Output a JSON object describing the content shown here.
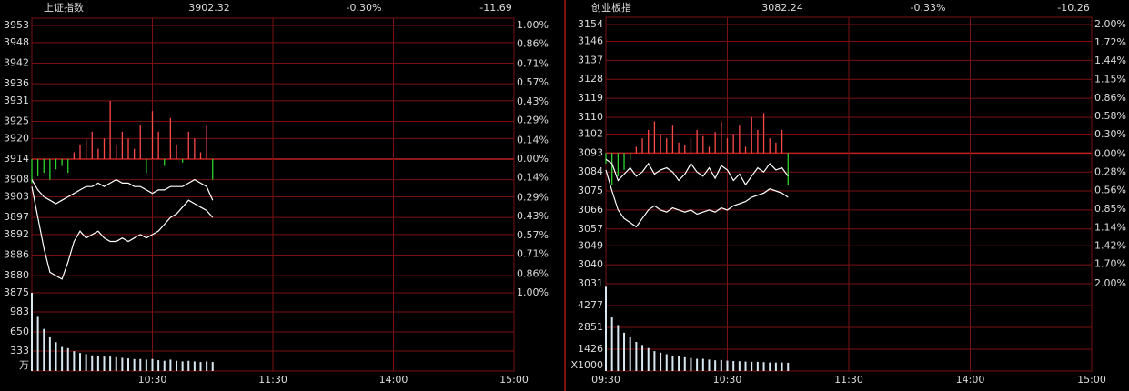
{
  "chart_data": [
    {
      "type": "line",
      "title": "上证指数",
      "price": 3902.32,
      "change_pct": {
        "value": -0.3,
        "label": "-0.30%"
      },
      "change": -11.69,
      "up_color": "#ff4a4a",
      "down_color": "#2fd52f",
      "flat_color": "#ffffff",
      "grid_color": "#7a1010",
      "x": [
        0,
        3,
        6,
        9,
        12,
        15,
        18,
        21,
        24,
        27,
        30,
        33,
        36,
        39,
        42,
        45,
        48,
        51,
        54,
        57,
        60,
        63,
        66,
        69,
        72,
        75,
        78,
        81,
        84,
        87,
        90
      ],
      "xlim": [
        0,
        240
      ],
      "xticks": [
        {
          "value": 60,
          "label": "10:30"
        },
        {
          "value": 120,
          "label": "11:30"
        },
        {
          "value": 180,
          "label": "14:00"
        },
        {
          "value": 240,
          "label": "15:00"
        }
      ],
      "ylim": [
        3875,
        3953
      ],
      "yticks": [
        3953,
        3948,
        3942,
        3936,
        3931,
        3925,
        3920,
        3914,
        3908,
        3903,
        3897,
        3892,
        3886,
        3880,
        3875
      ],
      "y2lim": [
        -1.0,
        1.0
      ],
      "y2ticks": [
        {
          "value": 1.0,
          "label": "1.00%"
        },
        {
          "value": 0.86,
          "label": "0.86%"
        },
        {
          "value": 0.71,
          "label": "0.71%"
        },
        {
          "value": 0.57,
          "label": "0.57%"
        },
        {
          "value": 0.43,
          "label": "0.43%"
        },
        {
          "value": 0.29,
          "label": "0.29%"
        },
        {
          "value": 0.14,
          "label": "0.14%"
        },
        {
          "value": 0.0,
          "label": "0.00%"
        },
        {
          "value": -0.14,
          "label": "0.14%"
        },
        {
          "value": -0.29,
          "label": "0.29%"
        },
        {
          "value": -0.43,
          "label": "0.43%"
        },
        {
          "value": -0.57,
          "label": "0.57%"
        },
        {
          "value": -0.71,
          "label": "0.71%"
        },
        {
          "value": -0.86,
          "label": "0.86%"
        },
        {
          "value": -1.0,
          "label": "1.00%"
        }
      ],
      "series": [
        {
          "color": "#ffffff",
          "values": [
            3908,
            3905,
            3903,
            3902,
            3901,
            3902,
            3903,
            3904,
            3905,
            3906,
            3906,
            3907,
            3906,
            3907,
            3908,
            3907,
            3907,
            3906,
            3906,
            3905,
            3904,
            3905,
            3905,
            3906,
            3906,
            3906,
            3907,
            3908,
            3907,
            3906,
            3902
          ]
        },
        {
          "color": "#ffffff",
          "values": [
            3906,
            3897,
            3888,
            3881,
            3880,
            3879,
            3884,
            3890,
            3893,
            3891,
            3892,
            3893,
            3891,
            3890,
            3890,
            3891,
            3890,
            3891,
            3892,
            3891,
            3892,
            3893,
            3895,
            3897,
            3898,
            3900,
            3902,
            3901,
            3900,
            3899,
            3897
          ]
        }
      ],
      "breadth": [
        3907,
        3909,
        3910,
        3908,
        3911,
        3912,
        3910,
        3916,
        3918,
        3920,
        3922,
        3917,
        3920,
        3931,
        3918,
        3922,
        3920,
        3917,
        3924,
        3910,
        3928,
        3922,
        3912,
        3926,
        3918,
        3913,
        3922,
        3920,
        3916,
        3924,
        3908
      ],
      "volume": {
        "color": "#d8e8f0",
        "label_color": "#5fb4e0",
        "unit": "万",
        "ylim": [
          0,
          1300
        ],
        "yticks": [
          333,
          650,
          983
        ],
        "values": [
          1300,
          900,
          700,
          560,
          480,
          400,
          380,
          330,
          300,
          280,
          260,
          250,
          240,
          240,
          230,
          220,
          210,
          200,
          200,
          190,
          200,
          180,
          170,
          190,
          170,
          160,
          170,
          160,
          150,
          160,
          150
        ]
      }
    },
    {
      "type": "line",
      "title": "创业板指",
      "price": 3082.24,
      "change_pct": {
        "value": -0.33,
        "label": "-0.33%"
      },
      "change": -10.26,
      "up_color": "#ff4a4a",
      "down_color": "#2fd52f",
      "flat_color": "#ffffff",
      "grid_color": "#7a1010",
      "x": [
        0,
        3,
        6,
        9,
        12,
        15,
        18,
        21,
        24,
        27,
        30,
        33,
        36,
        39,
        42,
        45,
        48,
        51,
        54,
        57,
        60,
        63,
        66,
        69,
        72,
        75,
        78,
        81,
        84,
        87,
        90
      ],
      "xlim": [
        0,
        240
      ],
      "xticks": [
        {
          "value": 0,
          "label": "09:30"
        },
        {
          "value": 60,
          "label": "10:30"
        },
        {
          "value": 120,
          "label": "11:30"
        },
        {
          "value": 180,
          "label": "14:00"
        },
        {
          "value": 240,
          "label": "15:00"
        }
      ],
      "ylim": [
        3031,
        3154
      ],
      "yticks": [
        3154,
        3146,
        3137,
        3128,
        3119,
        3110,
        3102,
        3093,
        3084,
        3075,
        3066,
        3057,
        3049,
        3040,
        3031
      ],
      "y2lim": [
        -2.0,
        2.0
      ],
      "y2ticks": [
        {
          "value": 2.0,
          "label": "2.00%"
        },
        {
          "value": 1.72,
          "label": "1.72%"
        },
        {
          "value": 1.44,
          "label": "1.44%"
        },
        {
          "value": 1.15,
          "label": "1.15%"
        },
        {
          "value": 0.86,
          "label": "0.86%"
        },
        {
          "value": 0.58,
          "label": "0.58%"
        },
        {
          "value": 0.3,
          "label": "0.30%"
        },
        {
          "value": 0.0,
          "label": "0.00%"
        },
        {
          "value": -0.28,
          "label": "0.28%"
        },
        {
          "value": -0.56,
          "label": "0.56%"
        },
        {
          "value": -0.85,
          "label": "0.85%"
        },
        {
          "value": -1.14,
          "label": "1.14%"
        },
        {
          "value": -1.42,
          "label": "1.42%"
        },
        {
          "value": -1.7,
          "label": "1.70%"
        },
        {
          "value": -2.0,
          "label": "2.00%"
        }
      ],
      "series": [
        {
          "color": "#ffffff",
          "values": [
            3090,
            3088,
            3080,
            3083,
            3086,
            3082,
            3084,
            3088,
            3083,
            3085,
            3086,
            3084,
            3080,
            3083,
            3088,
            3084,
            3082,
            3086,
            3081,
            3087,
            3085,
            3080,
            3083,
            3078,
            3082,
            3086,
            3084,
            3088,
            3085,
            3086,
            3082
          ]
        },
        {
          "color": "#ffffff",
          "values": [
            3085,
            3075,
            3066,
            3062,
            3060,
            3058,
            3062,
            3066,
            3068,
            3066,
            3065,
            3067,
            3066,
            3065,
            3066,
            3064,
            3065,
            3066,
            3065,
            3067,
            3066,
            3068,
            3069,
            3070,
            3072,
            3073,
            3074,
            3076,
            3075,
            3074,
            3072
          ]
        }
      ],
      "breadth": [
        3088,
        3078,
        3082,
        3085,
        3090,
        3096,
        3100,
        3104,
        3108,
        3102,
        3100,
        3106,
        3098,
        3097,
        3100,
        3104,
        3101,
        3096,
        3103,
        3108,
        3100,
        3102,
        3106,
        3096,
        3110,
        3104,
        3112,
        3100,
        3098,
        3104,
        3078
      ],
      "volume": {
        "color": "#d8e8f0",
        "label_color": "#5fb4e0",
        "unit": "X1000",
        "ylim": [
          0,
          5700
        ],
        "yticks": [
          1426,
          2851,
          4277
        ],
        "values": [
          5500,
          3500,
          3000,
          2500,
          2200,
          1900,
          1700,
          1500,
          1300,
          1200,
          1100,
          1000,
          950,
          900,
          850,
          800,
          800,
          750,
          700,
          720,
          680,
          650,
          640,
          620,
          600,
          600,
          580,
          560,
          550,
          560,
          540
        ]
      }
    }
  ]
}
